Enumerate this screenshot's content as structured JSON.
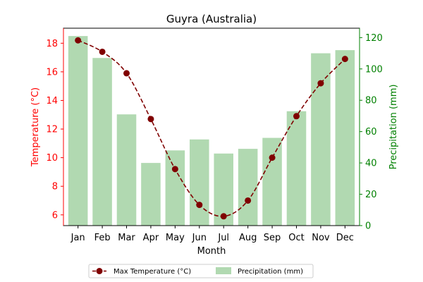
{
  "chart_data": {
    "type": "bar+line",
    "title": "Guyra (Australia)",
    "xlabel": "Month",
    "categories": [
      "Jan",
      "Feb",
      "Mar",
      "Apr",
      "May",
      "Jun",
      "Jul",
      "Aug",
      "Sep",
      "Oct",
      "Nov",
      "Dec"
    ],
    "temperature": {
      "name": "Max Temperature (°C)",
      "axis_label": "Temperature (°C)",
      "values": [
        18.2,
        17.4,
        15.9,
        12.7,
        9.2,
        6.7,
        5.9,
        7.0,
        10.0,
        12.9,
        15.2,
        16.9
      ],
      "ylim": [
        5.25,
        19.05
      ],
      "ticks": [
        6,
        8,
        10,
        12,
        14,
        16,
        18
      ],
      "color": "#800000",
      "axis_color": "#ff0000",
      "style": "dashed-line-with-circle-markers"
    },
    "precipitation": {
      "name": "Precipitation (mm)",
      "axis_label": "Precipitation (mm)",
      "values": [
        121,
        107,
        71,
        40,
        48,
        55,
        46,
        49,
        56,
        73,
        110,
        112
      ],
      "ylim": [
        0,
        126
      ],
      "ticks": [
        0,
        20,
        40,
        60,
        80,
        100,
        120
      ],
      "color": "#b1d9b1",
      "axis_color": "#008000"
    },
    "legend_position": "bottom-center"
  }
}
